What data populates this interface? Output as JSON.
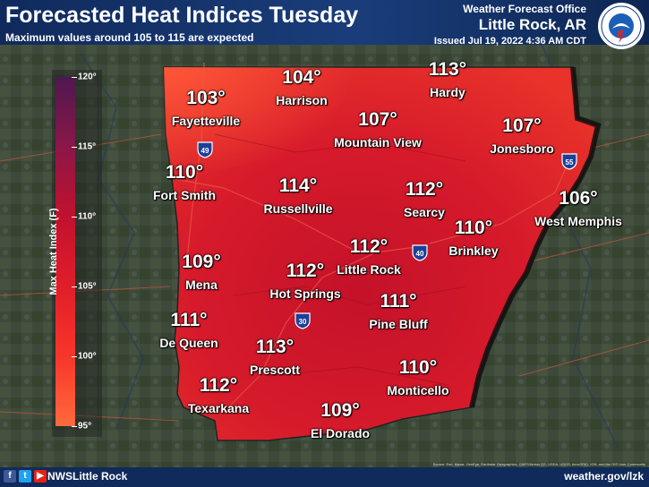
{
  "header": {
    "title": "Forecasted Heat Indices Tuesday",
    "subtitle": "Maximum values around 105 to 115 are expected",
    "office_line1": "Weather Forecast Office",
    "office_line2": "Little Rock, AR",
    "issued": "Issued Jul 19, 2022 4:36 AM CDT",
    "logo_text": "NATIONAL WEATHER SERVICE"
  },
  "legend": {
    "title": "Max Heat Index (F)",
    "min": 95,
    "max": 120,
    "ticks": [
      "95°",
      "100°",
      "105°",
      "110°",
      "115°",
      "120°"
    ],
    "colors": [
      "#ff6a3d",
      "#f7362a",
      "#e01e2a",
      "#c2112e",
      "#8b1748",
      "#4e1850"
    ]
  },
  "cities": [
    {
      "name": "Harrison",
      "value": "104°"
    },
    {
      "name": "Hardy",
      "value": "113°"
    },
    {
      "name": "Fayetteville",
      "value": "103°"
    },
    {
      "name": "Mountain View",
      "value": "107°"
    },
    {
      "name": "Jonesboro",
      "value": "107°"
    },
    {
      "name": "Fort Smith",
      "value": "110°"
    },
    {
      "name": "Russellville",
      "value": "114°"
    },
    {
      "name": "Searcy",
      "value": "112°"
    },
    {
      "name": "West Memphis",
      "value": "106°"
    },
    {
      "name": "Brinkley",
      "value": "110°"
    },
    {
      "name": "Little Rock",
      "value": "112°"
    },
    {
      "name": "Mena",
      "value": "109°"
    },
    {
      "name": "Hot Springs",
      "value": "112°"
    },
    {
      "name": "Pine Bluff",
      "value": "111°"
    },
    {
      "name": "De Queen",
      "value": "111°"
    },
    {
      "name": "Prescott",
      "value": "113°"
    },
    {
      "name": "Monticello",
      "value": "110°"
    },
    {
      "name": "Texarkana",
      "value": "112°"
    },
    {
      "name": "El Dorado",
      "value": "109°"
    }
  ],
  "interstates": [
    "49",
    "55",
    "40",
    "30"
  ],
  "footer": {
    "handle": "NWSLittle Rock",
    "website": "weather.gov/lzk",
    "credits": "Source: Esri, Maxar, GeoEye, Earthstar Geographics, CNES/Airbus DS, USDA, USGS, AeroGRID, IGN, and the GIS User Community",
    "icons": [
      "facebook-icon",
      "twitter-icon",
      "youtube-icon"
    ]
  }
}
